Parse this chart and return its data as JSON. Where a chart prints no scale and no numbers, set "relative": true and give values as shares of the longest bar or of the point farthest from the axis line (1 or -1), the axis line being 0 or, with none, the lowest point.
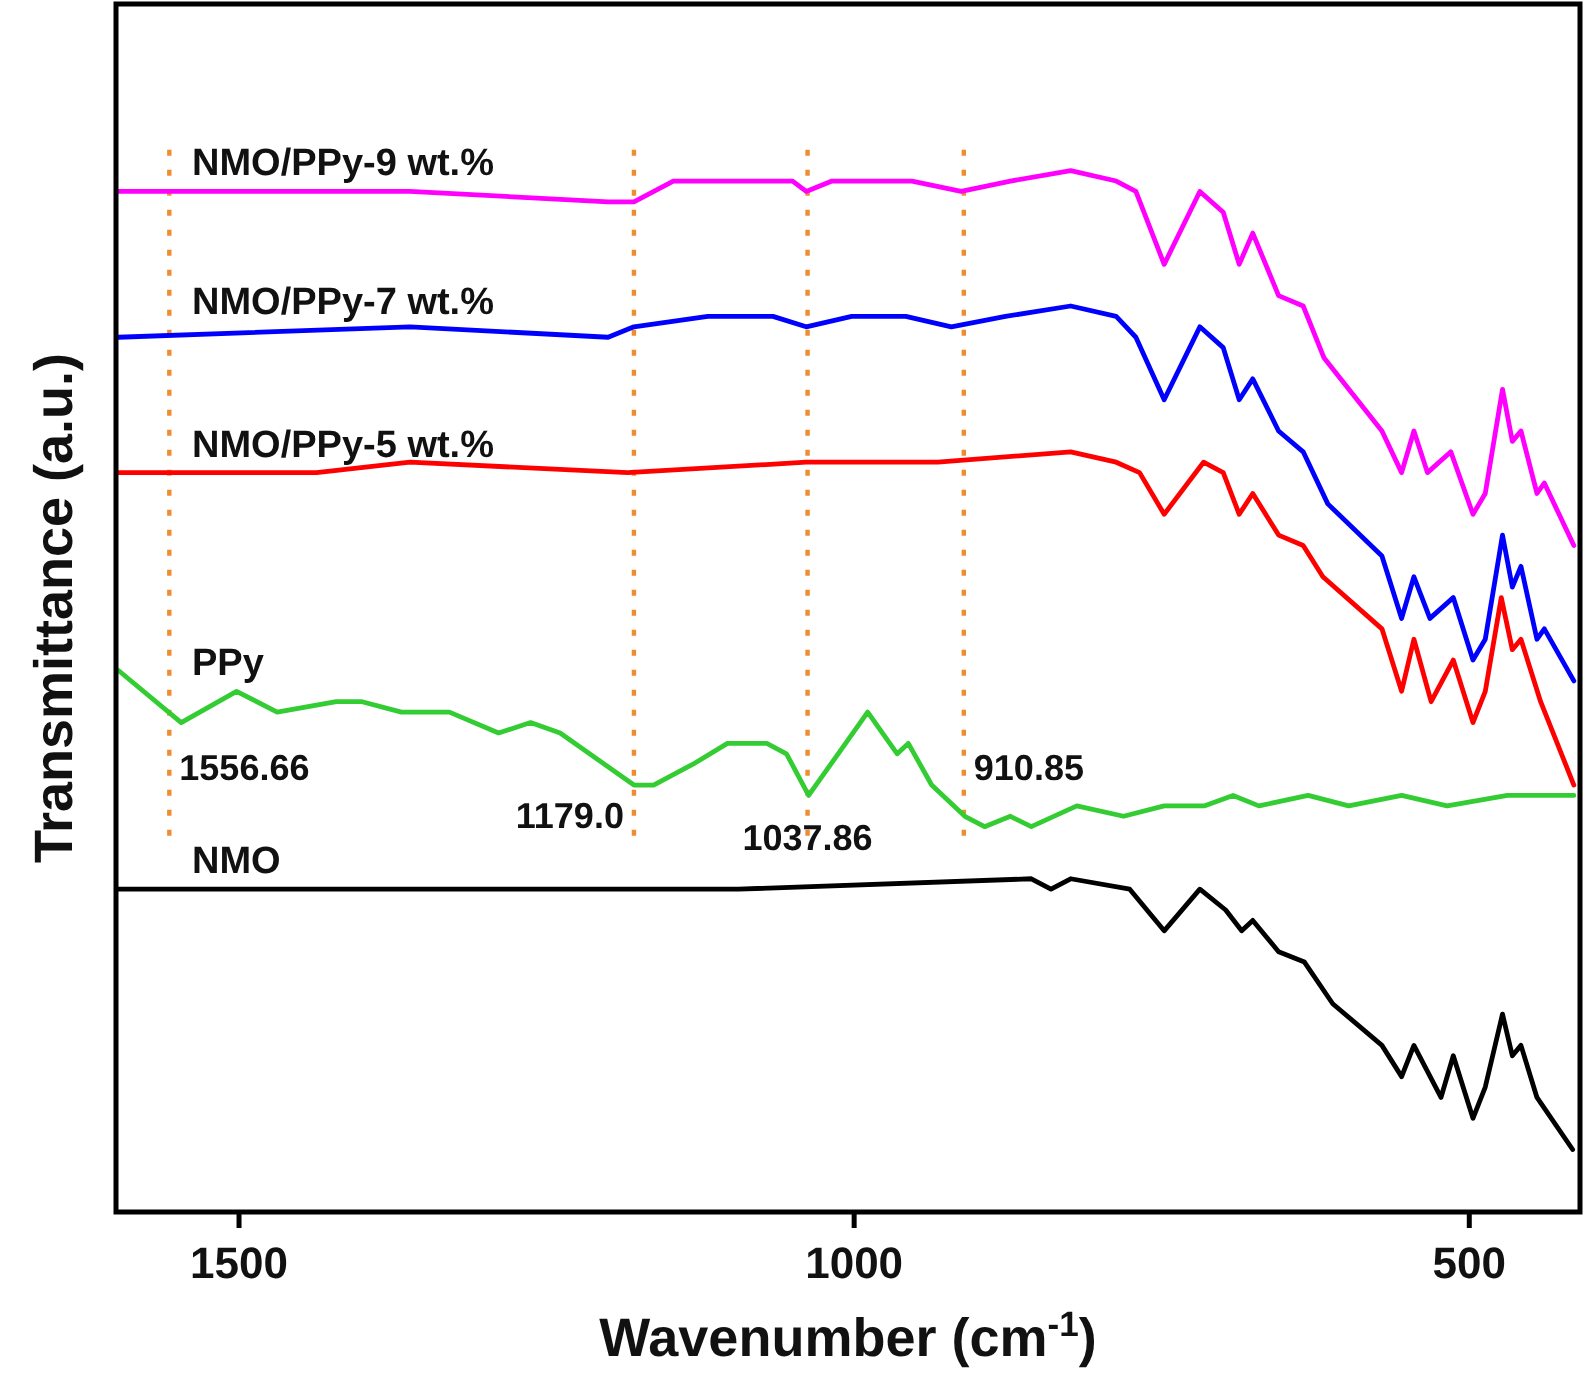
{
  "chart_data": {
    "type": "line",
    "relative": true,
    "xlabel": "Wavenumber (cm$^{-1}$)",
    "ylabel": "Transmittance (a.u.)",
    "xlim": [
      1600,
      410
    ],
    "xticks": [
      1500,
      1000,
      500
    ],
    "legend": false,
    "grid": false,
    "marker": "none",
    "line_style": "solid",
    "ref_lines": [
      {
        "axis": "x",
        "value": 1556.66,
        "label": "1556.66",
        "color": "#f08c30",
        "line_style": "dotted"
      },
      {
        "axis": "x",
        "value": 1179.0,
        "label": "1179.0",
        "color": "#f08c30",
        "line_style": "dotted"
      },
      {
        "axis": "x",
        "value": 1037.86,
        "label": "1037.86",
        "color": "#f08c30",
        "line_style": "dotted"
      },
      {
        "axis": "x",
        "value": 910.85,
        "label": "910.85",
        "color": "#f08c30",
        "line_style": "dotted"
      }
    ],
    "series": [
      {
        "name": "NMO/PPy-9 wt.%",
        "color": "#ff00ff",
        "x": [
          1598,
          1361,
          1200,
          1179,
          1147,
          1082,
          1050,
          1039,
          1018,
          985,
          953,
          913,
          873,
          824,
          787,
          771,
          748,
          719,
          700,
          687,
          676,
          655,
          635,
          618,
          571,
          555,
          545,
          534,
          515,
          497,
          487,
          473,
          465,
          458,
          445,
          439,
          415
        ],
        "values": [
          0.98,
          0.98,
          0.97,
          0.97,
          0.99,
          0.99,
          0.99,
          0.98,
          0.99,
          0.99,
          0.99,
          0.98,
          0.99,
          1.0,
          0.99,
          0.98,
          0.91,
          0.98,
          0.96,
          0.91,
          0.94,
          0.88,
          0.87,
          0.82,
          0.75,
          0.71,
          0.75,
          0.71,
          0.73,
          0.67,
          0.69,
          0.79,
          0.74,
          0.75,
          0.69,
          0.7,
          0.64
        ]
      },
      {
        "name": "NMO/PPy-7 wt.%",
        "color": "#0000ff",
        "x": [
          1598,
          1361,
          1200,
          1179,
          1119,
          1066,
          1039,
          1002,
          958,
          921,
          877,
          824,
          787,
          771,
          748,
          719,
          700,
          687,
          676,
          655,
          635,
          615,
          571,
          555,
          545,
          532,
          513,
          497,
          487,
          473,
          465,
          458,
          445,
          439,
          415
        ],
        "values": [
          0.84,
          0.85,
          0.84,
          0.85,
          0.86,
          0.86,
          0.85,
          0.86,
          0.86,
          0.85,
          0.86,
          0.87,
          0.86,
          0.84,
          0.78,
          0.85,
          0.83,
          0.78,
          0.8,
          0.75,
          0.73,
          0.68,
          0.63,
          0.57,
          0.61,
          0.57,
          0.59,
          0.53,
          0.55,
          0.65,
          0.6,
          0.62,
          0.55,
          0.56,
          0.51
        ]
      },
      {
        "name": "NMO/PPy-5 wt.%",
        "color": "#ff0000",
        "x": [
          1598,
          1437,
          1361,
          1184,
          1039,
          932,
          824,
          787,
          768,
          748,
          716,
          700,
          687,
          676,
          655,
          635,
          619,
          571,
          555,
          545,
          531,
          513,
          497,
          487,
          474,
          465,
          458,
          442,
          415
        ],
        "values": [
          0.71,
          0.71,
          0.72,
          0.71,
          0.72,
          0.72,
          0.73,
          0.72,
          0.71,
          0.67,
          0.72,
          0.71,
          0.67,
          0.69,
          0.65,
          0.64,
          0.61,
          0.56,
          0.5,
          0.55,
          0.49,
          0.53,
          0.47,
          0.5,
          0.59,
          0.54,
          0.55,
          0.49,
          0.41
        ]
      },
      {
        "name": "PPy",
        "color": "#33cc33",
        "x": [
          1598,
          1547,
          1502,
          1469,
          1421,
          1400,
          1368,
          1329,
          1289,
          1263,
          1239,
          1179,
          1163,
          1131,
          1103,
          1094,
          1071,
          1055,
          1037,
          1013,
          989,
          965,
          956,
          937,
          910,
          894,
          873,
          856,
          819,
          781,
          748,
          715,
          692,
          671,
          631,
          598,
          555,
          518,
          469,
          415
        ],
        "values": [
          0.52,
          0.47,
          0.5,
          0.48,
          0.49,
          0.49,
          0.48,
          0.48,
          0.46,
          0.47,
          0.46,
          0.41,
          0.41,
          0.43,
          0.45,
          0.45,
          0.45,
          0.44,
          0.4,
          0.44,
          0.48,
          0.44,
          0.45,
          0.41,
          0.38,
          0.37,
          0.38,
          0.37,
          0.39,
          0.38,
          0.39,
          0.39,
          0.4,
          0.39,
          0.4,
          0.39,
          0.4,
          0.39,
          0.4,
          0.4
        ]
      },
      {
        "name": "NMO",
        "color": "#000000",
        "x": [
          1598,
          1361,
          1094,
          856,
          840,
          824,
          776,
          748,
          719,
          698,
          685,
          676,
          655,
          634,
          611,
          571,
          555,
          545,
          523,
          513,
          497,
          487,
          473,
          465,
          458,
          445,
          416
        ],
        "values": [
          0.31,
          0.31,
          0.31,
          0.32,
          0.31,
          0.32,
          0.31,
          0.27,
          0.31,
          0.29,
          0.27,
          0.28,
          0.25,
          0.24,
          0.2,
          0.16,
          0.13,
          0.16,
          0.11,
          0.15,
          0.09,
          0.12,
          0.19,
          0.15,
          0.16,
          0.11,
          0.06
        ]
      }
    ]
  }
}
